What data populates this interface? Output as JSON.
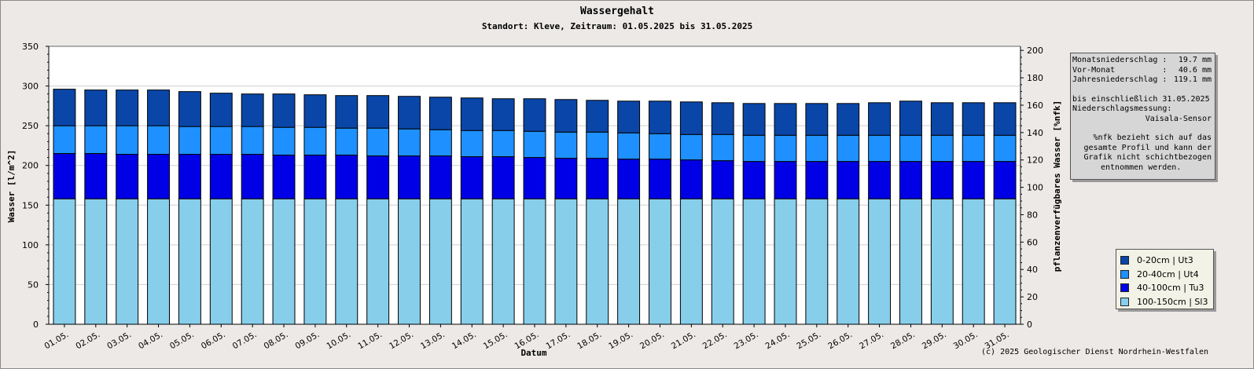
{
  "chart_data": {
    "type": "bar",
    "stacked": true,
    "title": "Wassergehalt",
    "subtitle": "Standort: Kleve, Zeitraum: 01.05.2025 bis 31.05.2025",
    "xlabel": "Datum",
    "ylabel": "Wasser [l/m^2]",
    "ylabel_right": "pflanzenverfügbares Wasser [%nfk]",
    "ylim": [
      0,
      350
    ],
    "yticks": [
      0,
      50,
      100,
      150,
      200,
      250,
      300,
      350
    ],
    "ylim_right": [
      0,
      203
    ],
    "yticks_right": [
      0,
      20,
      40,
      60,
      80,
      100,
      120,
      140,
      160,
      180,
      200
    ],
    "grid": true,
    "categories": [
      "01.05.",
      "02.05.",
      "03.05.",
      "04.05.",
      "05.05.",
      "06.05.",
      "07.05.",
      "08.05.",
      "09.05.",
      "10.05.",
      "11.05.",
      "12.05.",
      "13.05.",
      "14.05.",
      "15.05.",
      "16.05.",
      "17.05.",
      "18.05.",
      "19.05.",
      "20.05.",
      "21.05.",
      "22.05.",
      "23.05.",
      "24.05.",
      "25.05.",
      "26.05.",
      "27.05.",
      "28.05.",
      "29.05.",
      "30.05.",
      "31.05."
    ],
    "series": [
      {
        "name": "100-150cm | Sl3",
        "color": "#87ceeb",
        "values": [
          158,
          158,
          158,
          158,
          158,
          158,
          158,
          158,
          158,
          158,
          158,
          158,
          158,
          158,
          158,
          158,
          158,
          158,
          158,
          158,
          158,
          158,
          158,
          158,
          158,
          158,
          158,
          158,
          158,
          158,
          158
        ]
      },
      {
        "name": "40-100cm | Tu3",
        "color": "#0000e6",
        "values": [
          57,
          57,
          56,
          56,
          56,
          56,
          56,
          55,
          55,
          55,
          54,
          54,
          54,
          53,
          53,
          52,
          51,
          51,
          50,
          50,
          49,
          48,
          47,
          47,
          47,
          47,
          47,
          47,
          47,
          47,
          47
        ]
      },
      {
        "name": "20-40cm | Ut4",
        "color": "#1e90ff",
        "values": [
          35,
          35,
          36,
          36,
          35,
          35,
          35,
          35,
          35,
          34,
          35,
          34,
          33,
          33,
          33,
          33,
          33,
          33,
          33,
          32,
          32,
          33,
          33,
          33,
          33,
          33,
          33,
          33,
          33,
          33,
          33
        ]
      },
      {
        "name": "0-20cm | Ut3",
        "color": "#0a46a8",
        "values": [
          46,
          45,
          45,
          45,
          44,
          42,
          41,
          42,
          41,
          41,
          41,
          41,
          41,
          41,
          40,
          41,
          41,
          40,
          40,
          41,
          41,
          40,
          40,
          40,
          40,
          40,
          41,
          43,
          41,
          41,
          41
        ]
      }
    ]
  },
  "info": {
    "monatsniederschlag_label": "Monatsniederschlag :",
    "monatsniederschlag_value": "19.7 mm",
    "vormonat_label": "Vor-Monat          :",
    "vormonat_value": "40.6 mm",
    "jahresniederschlag_label": "Jahresniederschlag :",
    "jahresniederschlag_value": "119.1 mm",
    "messung_line1": "bis einschließlich 31.05.2025",
    "messung_line2": "Niederschlagsmessung:",
    "messung_line3": "Vaisala-Sensor",
    "note_line1": "%nfk bezieht sich auf das",
    "note_line2": "gesamte Profil und kann der",
    "note_line3": "Grafik nicht schichtbezogen",
    "note_line4": "entnommen werden."
  },
  "legend": {
    "items": [
      {
        "label": "0-20cm | Ut3",
        "color": "#0a46a8"
      },
      {
        "label": "20-40cm | Ut4",
        "color": "#1e90ff"
      },
      {
        "label": "40-100cm | Tu3",
        "color": "#0000e6"
      },
      {
        "label": "100-150cm | Sl3",
        "color": "#87ceeb"
      }
    ]
  },
  "copyright": "(c) 2025 Geologischer Dienst Nordrhein-Westfalen"
}
